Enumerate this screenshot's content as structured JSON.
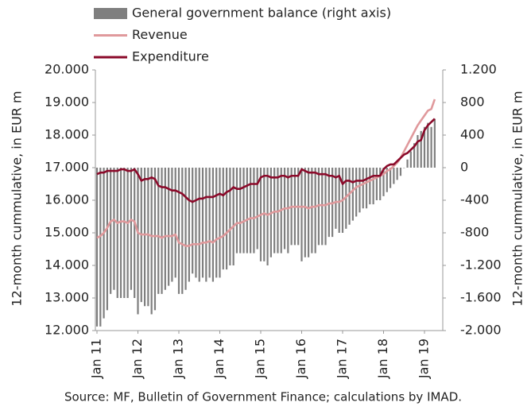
{
  "chart_data": {
    "type": "combo",
    "legend": "top-left",
    "y_label": "12-month cummulative, in EUR m",
    "y2_label": "12-month cummulative, in EUR m",
    "source": "Source: MF, Bulletin of Government Finance; calculations by IMAD.",
    "categories": [
      "Jan 11",
      null,
      null,
      null,
      null,
      null,
      null,
      null,
      null,
      null,
      null,
      null,
      "Jan 12",
      null,
      null,
      null,
      null,
      null,
      null,
      null,
      null,
      null,
      null,
      null,
      "Jan 13",
      null,
      null,
      null,
      null,
      null,
      null,
      null,
      null,
      null,
      null,
      null,
      "Jan 14",
      null,
      null,
      null,
      null,
      null,
      null,
      null,
      null,
      null,
      null,
      null,
      "Jan 15",
      null,
      null,
      null,
      null,
      null,
      null,
      null,
      null,
      null,
      null,
      null,
      "Jan 16",
      null,
      null,
      null,
      null,
      null,
      null,
      null,
      null,
      null,
      null,
      null,
      "Jan 17",
      null,
      null,
      null,
      null,
      null,
      null,
      null,
      null,
      null,
      null,
      null,
      "Jan 18",
      null,
      null,
      null,
      null,
      null,
      null,
      null,
      null,
      null,
      null,
      null,
      "Jan 19",
      null,
      null,
      null
    ],
    "ylim": [
      12000,
      20000
    ],
    "yticks": [
      {
        "value": 12000,
        "label": "12.000"
      },
      {
        "value": 13000,
        "label": "13.000"
      },
      {
        "value": 14000,
        "label": "14.000"
      },
      {
        "value": 15000,
        "label": "15.000"
      },
      {
        "value": 16000,
        "label": "16.000"
      },
      {
        "value": 17000,
        "label": "17.000"
      },
      {
        "value": 18000,
        "label": "18.000"
      },
      {
        "value": 19000,
        "label": "19.000"
      },
      {
        "value": 20000,
        "label": "20.000"
      }
    ],
    "y2lim": [
      -2000,
      1200
    ],
    "y2ticks": [
      {
        "value": -2000,
        "label": "-2.000"
      },
      {
        "value": -1600,
        "label": "-1.600"
      },
      {
        "value": -1200,
        "label": "-1.200"
      },
      -800,
      -400,
      0,
      400,
      800,
      {
        "value": 1200,
        "label": "1.200"
      }
    ],
    "series": [
      {
        "name": "General government balance (right axis)",
        "kind": "bar",
        "axis": "y2",
        "color": "#7f7f7f",
        "values": [
          -1950,
          -1950,
          -1850,
          -1750,
          -1550,
          -1500,
          -1600,
          -1600,
          -1600,
          -1600,
          -1500,
          -1600,
          -1800,
          -1650,
          -1700,
          -1700,
          -1800,
          -1750,
          -1550,
          -1550,
          -1500,
          -1450,
          -1400,
          -1350,
          -1550,
          -1550,
          -1500,
          -1400,
          -1300,
          -1350,
          -1400,
          -1350,
          -1400,
          -1350,
          -1400,
          -1350,
          -1350,
          -1250,
          -1250,
          -1200,
          -1200,
          -1050,
          -1050,
          -1050,
          -1050,
          -1050,
          -1050,
          -1000,
          -1150,
          -1150,
          -1200,
          -1100,
          -1050,
          -1050,
          -1050,
          -1000,
          -1050,
          -950,
          -950,
          -950,
          -1150,
          -1100,
          -1100,
          -1050,
          -1050,
          -950,
          -950,
          -950,
          -850,
          -850,
          -750,
          -800,
          -800,
          -750,
          -700,
          -650,
          -600,
          -550,
          -500,
          -500,
          -450,
          -450,
          -400,
          -400,
          -350,
          -300,
          -250,
          -200,
          -150,
          -100,
          0,
          100,
          200,
          300,
          400,
          450,
          500,
          550,
          500,
          600
        ]
      },
      {
        "name": "Revenue",
        "kind": "line",
        "color": "#e0999c",
        "values": [
          14850,
          14900,
          15000,
          15150,
          15350,
          15400,
          15300,
          15350,
          15350,
          15300,
          15400,
          15350,
          15000,
          14950,
          14950,
          14950,
          14900,
          14900,
          14900,
          14850,
          14900,
          14900,
          14900,
          14950,
          14700,
          14650,
          14600,
          14600,
          14650,
          14650,
          14650,
          14700,
          14700,
          14750,
          14700,
          14800,
          14850,
          14900,
          15000,
          15100,
          15200,
          15300,
          15300,
          15350,
          15400,
          15450,
          15450,
          15500,
          15550,
          15600,
          15550,
          15600,
          15650,
          15650,
          15700,
          15750,
          15750,
          15800,
          15800,
          15800,
          15800,
          15800,
          15750,
          15800,
          15800,
          15850,
          15850,
          15850,
          15900,
          15900,
          15950,
          15950,
          16000,
          16100,
          16200,
          16300,
          16400,
          16450,
          16500,
          16550,
          16600,
          16650,
          16700,
          16750,
          16800,
          16900,
          16950,
          17050,
          17150,
          17300,
          17500,
          17700,
          17900,
          18100,
          18300,
          18450,
          18600,
          18750,
          18800,
          19100
        ]
      },
      {
        "name": "Expenditure",
        "kind": "line",
        "color": "#8b0a2a",
        "values": [
          16800,
          16850,
          16850,
          16900,
          16900,
          16900,
          16900,
          16950,
          16950,
          16900,
          16900,
          16950,
          16800,
          16600,
          16650,
          16650,
          16700,
          16650,
          16450,
          16400,
          16400,
          16350,
          16300,
          16300,
          16250,
          16200,
          16100,
          16000,
          15950,
          16000,
          16050,
          16050,
          16100,
          16100,
          16100,
          16150,
          16200,
          16150,
          16250,
          16300,
          16400,
          16350,
          16350,
          16400,
          16450,
          16500,
          16500,
          16500,
          16700,
          16750,
          16750,
          16700,
          16700,
          16700,
          16750,
          16750,
          16700,
          16750,
          16750,
          16750,
          16950,
          16900,
          16850,
          16850,
          16850,
          16800,
          16800,
          16800,
          16750,
          16750,
          16700,
          16750,
          16500,
          16600,
          16600,
          16550,
          16600,
          16600,
          16600,
          16650,
          16700,
          16750,
          16750,
          16750,
          16950,
          17050,
          17100,
          17100,
          17200,
          17300,
          17400,
          17450,
          17550,
          17650,
          17800,
          17850,
          18150,
          18300,
          18400,
          18500
        ]
      }
    ]
  }
}
